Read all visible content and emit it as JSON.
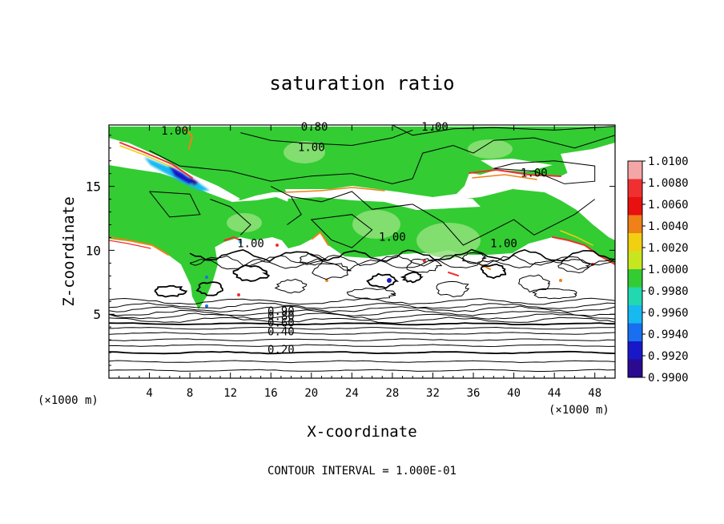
{
  "chart_data": {
    "type": "heatmap",
    "title": "saturation ratio",
    "xlabel": "X-coordinate",
    "ylabel": "Z-coordinate",
    "x_unit_label": "(×1000 m)",
    "z_unit_label": "(×1000 m)",
    "xlim": [
      0,
      50
    ],
    "ylim": [
      0,
      19.8
    ],
    "x_ticks": [
      4,
      8,
      12,
      16,
      20,
      24,
      28,
      32,
      36,
      40,
      44,
      48
    ],
    "y_ticks": [
      5,
      10,
      15
    ],
    "footer": "CONTOUR INTERVAL = 1.000E-01",
    "colorbar": {
      "levels": [
        "1.0100",
        "1.0080",
        "1.0060",
        "1.0040",
        "1.0020",
        "1.0000",
        "0.9980",
        "0.9960",
        "0.9940",
        "0.9920",
        "0.9900"
      ],
      "colors": [
        "#f4a6a6",
        "#f03030",
        "#e81010",
        "#f08018",
        "#f0d010",
        "#c8e620",
        "#33cc33",
        "#22d8b0",
        "#18b8f0",
        "#1870f0",
        "#1818c8",
        "#2a0a90"
      ]
    },
    "contour_labels": [
      {
        "text": "1.00",
        "x": 6.5,
        "z": 19.3
      },
      {
        "text": "0.80",
        "x": 20.3,
        "z": 19.6
      },
      {
        "text": "1.00",
        "x": 32.2,
        "z": 19.6
      },
      {
        "text": "1.00",
        "x": 20.0,
        "z": 18.0
      },
      {
        "text": "1.00",
        "x": 42.0,
        "z": 16.0
      },
      {
        "text": "1.00",
        "x": 28.0,
        "z": 11.0
      },
      {
        "text": "1.00",
        "x": 39.0,
        "z": 10.5
      },
      {
        "text": "1.00",
        "x": 14.0,
        "z": 10.5
      },
      {
        "text": "0.90",
        "x": 17.0,
        "z": 5.2
      },
      {
        "text": "0.80",
        "x": 17.0,
        "z": 4.8
      },
      {
        "text": "0.60",
        "x": 17.0,
        "z": 4.3
      },
      {
        "text": "0.40",
        "x": 17.0,
        "z": 3.6
      },
      {
        "text": "0.20",
        "x": 17.0,
        "z": 2.2
      }
    ]
  }
}
